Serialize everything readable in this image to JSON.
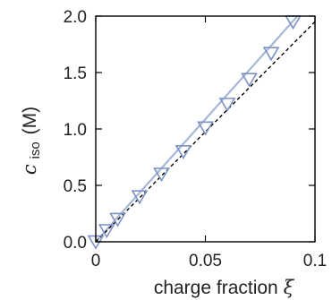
{
  "chart_data": {
    "type": "scatter",
    "xlabel": "charge fraction",
    "xlabel_symbol": "ξ",
    "ylabel_symbol": "c",
    "ylabel_subscript": "iso",
    "ylabel_unit": "(M)",
    "xlim": [
      0,
      0.1
    ],
    "ylim": [
      0,
      2.0
    ],
    "x_ticks": [
      0,
      0.05,
      0.1
    ],
    "x_tick_labels": [
      "0",
      "0.05",
      "0.1"
    ],
    "y_ticks": [
      0.0,
      0.5,
      1.0,
      1.5,
      2.0
    ],
    "y_tick_labels": [
      "0.0",
      "0.5",
      "1.0",
      "1.5",
      "2.0"
    ],
    "grid": false,
    "series": [
      {
        "marker": "triangle-down",
        "color": "#7d92c4",
        "x": [
          0.0,
          0.005,
          0.01,
          0.02,
          0.03,
          0.04,
          0.05,
          0.06,
          0.07,
          0.08,
          0.09
        ],
        "y": [
          0.0,
          0.1,
          0.2,
          0.4,
          0.6,
          0.8,
          1.01,
          1.22,
          1.44,
          1.67,
          1.95
        ]
      }
    ],
    "lines": [
      {
        "style": "solid",
        "color": "#a8b6d6",
        "x": [
          0.0,
          0.092
        ],
        "y": [
          0.0,
          2.0
        ]
      },
      {
        "style": "dashed",
        "color": "#000000",
        "x": [
          0.0,
          0.1
        ],
        "y": [
          0.0,
          1.95
        ]
      }
    ]
  }
}
